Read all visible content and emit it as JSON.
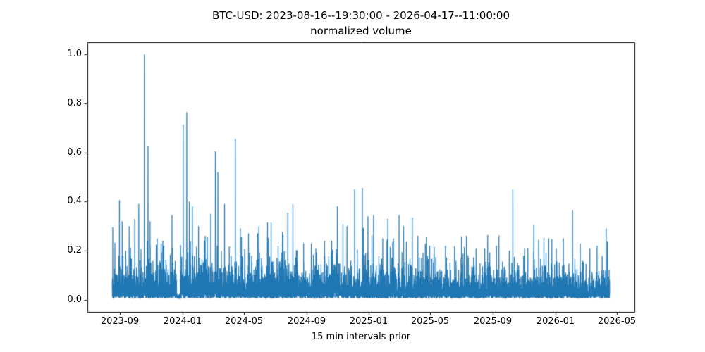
{
  "chart_data": {
    "type": "line",
    "title": "BTC-USD: 2023-08-16--19:30:00 - 2026-04-17--11:00:00",
    "subtitle": "normalized volume",
    "xlabel": "15 min intervals prior",
    "ylabel": "",
    "series_name": "normalized volume",
    "line_color": "#1f77b4",
    "background_color": "#ffffff",
    "grid": false,
    "legend": "none",
    "x_start": "2023-08-16 19:30:00",
    "x_end": "2026-04-17 11:00:00",
    "total_days": 974.65,
    "x_margin_days": 48.73,
    "ylim": [
      -0.05,
      1.05
    ],
    "y_ticks": [
      {
        "label": "0.0",
        "value": 0.0
      },
      {
        "label": "0.2",
        "value": 0.2
      },
      {
        "label": "0.4",
        "value": 0.4
      },
      {
        "label": "0.6",
        "value": 0.6
      },
      {
        "label": "0.8",
        "value": 0.8
      },
      {
        "label": "1.0",
        "value": 1.0
      }
    ],
    "x_ticks": [
      {
        "label": "2023-09",
        "day": 15.2
      },
      {
        "label": "2024-01",
        "day": 137.2
      },
      {
        "label": "2024-05",
        "day": 258.2
      },
      {
        "label": "2024-09",
        "day": 381.2
      },
      {
        "label": "2025-01",
        "day": 503.2
      },
      {
        "label": "2025-05",
        "day": 623.2
      },
      {
        "label": "2025-09",
        "day": 746.2
      },
      {
        "label": "2026-01",
        "day": 868.2
      },
      {
        "label": "2026-05",
        "day": 988.2
      }
    ],
    "major_peaks_day_value": [
      [
        1,
        0.295
      ],
      [
        14,
        0.405
      ],
      [
        33,
        0.3
      ],
      [
        44,
        0.33
      ],
      [
        52,
        0.39
      ],
      [
        63,
        1.0
      ],
      [
        70,
        0.625
      ],
      [
        88,
        0.25
      ],
      [
        99,
        0.24
      ],
      [
        117,
        0.345
      ],
      [
        139,
        0.715
      ],
      [
        146,
        0.765
      ],
      [
        151,
        0.4
      ],
      [
        157,
        0.38
      ],
      [
        169,
        0.3
      ],
      [
        182,
        0.26
      ],
      [
        193,
        0.35
      ],
      [
        202,
        0.605
      ],
      [
        207,
        0.52
      ],
      [
        220,
        0.39
      ],
      [
        241,
        0.655
      ],
      [
        251,
        0.29
      ],
      [
        267,
        0.27
      ],
      [
        285,
        0.27
      ],
      [
        304,
        0.26
      ],
      [
        325,
        0.22
      ],
      [
        344,
        0.355
      ],
      [
        354,
        0.39
      ],
      [
        375,
        0.23
      ],
      [
        399,
        0.21
      ],
      [
        416,
        0.24
      ],
      [
        430,
        0.24
      ],
      [
        441,
        0.38
      ],
      [
        452,
        0.31
      ],
      [
        460,
        0.3
      ],
      [
        475,
        0.45
      ],
      [
        490,
        0.455
      ],
      [
        501,
        0.34
      ],
      [
        512,
        0.345
      ],
      [
        530,
        0.25
      ],
      [
        540,
        0.33
      ],
      [
        551,
        0.25
      ],
      [
        562,
        0.345
      ],
      [
        571,
        0.3
      ],
      [
        588,
        0.335
      ],
      [
        599,
        0.26
      ],
      [
        622,
        0.22
      ],
      [
        653,
        0.22
      ],
      [
        671,
        0.21
      ],
      [
        694,
        0.26
      ],
      [
        713,
        0.21
      ],
      [
        730,
        0.21
      ],
      [
        753,
        0.22
      ],
      [
        785,
        0.448
      ],
      [
        808,
        0.21
      ],
      [
        826,
        0.305
      ],
      [
        850,
        0.19
      ],
      [
        870,
        0.21
      ],
      [
        884,
        0.25
      ],
      [
        902,
        0.365
      ],
      [
        917,
        0.23
      ],
      [
        936,
        0.21
      ],
      [
        950,
        0.22
      ],
      [
        968,
        0.29
      ]
    ],
    "noise": {
      "seed": 42,
      "points": 7000,
      "mean": 0.042,
      "floor": 0.004,
      "burst_prob": 0.025,
      "burst_scale": 2.2,
      "cap": 0.3,
      "envelope_decay_start": 260,
      "envelope_end_factor": 0.72,
      "quiet_window": [
        126,
        133
      ]
    }
  }
}
